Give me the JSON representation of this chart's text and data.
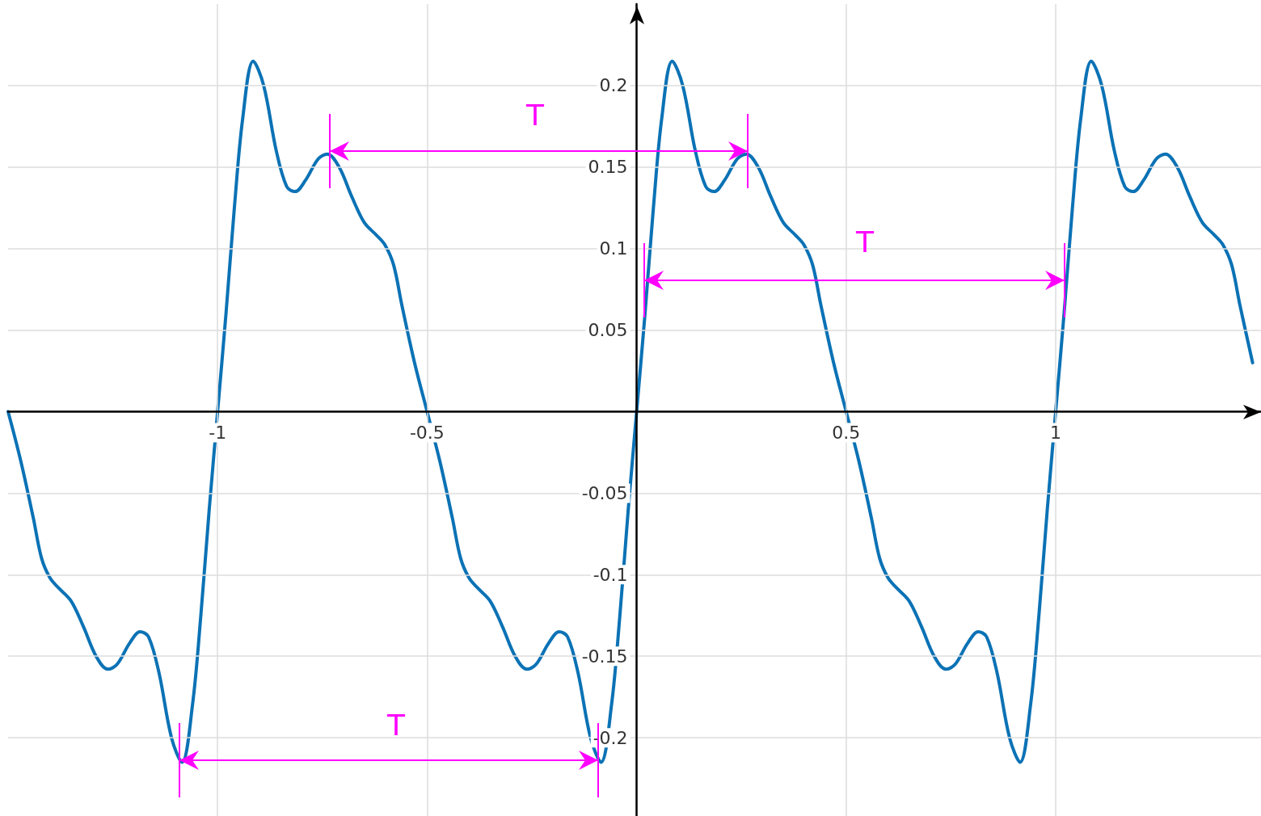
{
  "chart_data": {
    "type": "line",
    "color": "#0b72b5",
    "x": [
      -1.5,
      -1.47,
      -1.44,
      -1.42,
      -1.4,
      -1.38,
      -1.35,
      -1.32,
      -1.29,
      -1.262,
      -1.24,
      -1.21,
      -1.185,
      -1.165,
      -1.14,
      -1.11,
      -1.085,
      -1.06,
      -1.04,
      -1.02,
      -1,
      -0.98,
      -0.96,
      -0.94,
      -0.915,
      -0.89,
      -0.86,
      -0.835,
      -0.815,
      -0.79,
      -0.76,
      -0.738,
      -0.71,
      -0.68,
      -0.65,
      -0.62,
      -0.6,
      -0.58,
      -0.56,
      -0.53,
      -0.5,
      -0.47,
      -0.44,
      -0.42,
      -0.4,
      -0.38,
      -0.35,
      -0.32,
      -0.29,
      -0.262,
      -0.24,
      -0.21,
      -0.185,
      -0.165,
      -0.14,
      -0.11,
      -0.085,
      -0.06,
      -0.04,
      -0.02,
      0,
      0.02,
      0.04,
      0.06,
      0.085,
      0.11,
      0.14,
      0.165,
      0.185,
      0.21,
      0.24,
      0.262,
      0.29,
      0.32,
      0.35,
      0.38,
      0.4,
      0.42,
      0.44,
      0.47,
      0.5,
      0.53,
      0.56,
      0.58,
      0.6,
      0.62,
      0.65,
      0.68,
      0.71,
      0.738,
      0.76,
      0.79,
      0.815,
      0.835,
      0.86,
      0.89,
      0.915,
      0.94,
      0.96,
      0.98,
      1,
      1.02,
      1.04,
      1.06,
      1.085,
      1.11,
      1.14,
      1.165,
      1.185,
      1.21,
      1.24,
      1.262,
      1.29,
      1.32,
      1.35,
      1.38,
      1.4,
      1.42,
      1.44,
      1.47
    ],
    "values": [
      0,
      -0.03,
      -0.065,
      -0.09,
      -0.102,
      -0.108,
      -0.116,
      -0.132,
      -0.15,
      -0.158,
      -0.155,
      -0.142,
      -0.135,
      -0.138,
      -0.16,
      -0.2,
      -0.215,
      -0.18,
      -0.125,
      -0.06,
      0,
      0.06,
      0.125,
      0.18,
      0.215,
      0.2,
      0.16,
      0.138,
      0.135,
      0.142,
      0.155,
      0.158,
      0.15,
      0.132,
      0.116,
      0.108,
      0.102,
      0.09,
      0.065,
      0.03,
      0,
      -0.03,
      -0.065,
      -0.09,
      -0.102,
      -0.108,
      -0.116,
      -0.132,
      -0.15,
      -0.158,
      -0.155,
      -0.142,
      -0.135,
      -0.138,
      -0.16,
      -0.2,
      -0.215,
      -0.18,
      -0.125,
      -0.06,
      0,
      0.06,
      0.125,
      0.18,
      0.215,
      0.2,
      0.16,
      0.138,
      0.135,
      0.142,
      0.155,
      0.158,
      0.15,
      0.132,
      0.116,
      0.108,
      0.102,
      0.09,
      0.065,
      0.03,
      0,
      -0.03,
      -0.065,
      -0.09,
      -0.102,
      -0.108,
      -0.116,
      -0.132,
      -0.15,
      -0.158,
      -0.155,
      -0.142,
      -0.135,
      -0.138,
      -0.16,
      -0.2,
      -0.215,
      -0.18,
      -0.125,
      -0.06,
      0,
      0.06,
      0.125,
      0.18,
      0.215,
      0.2,
      0.16,
      0.138,
      0.135,
      0.142,
      0.155,
      0.158,
      0.15,
      0.132,
      0.116,
      0.108,
      0.102,
      0.09,
      0.065,
      0.03
    ],
    "xlim": [
      -1.5,
      1.49
    ],
    "ylim": [
      -0.248,
      0.25
    ],
    "xticks": [
      -1,
      -0.5,
      0.5,
      1
    ],
    "yticks": [
      -0.2,
      -0.15,
      -0.1,
      -0.05,
      0.05,
      0.1,
      0.15,
      0.2
    ],
    "grid": true,
    "marker": "none",
    "line_style": "solid",
    "annotations": [
      "T",
      "T",
      "T"
    ]
  }
}
